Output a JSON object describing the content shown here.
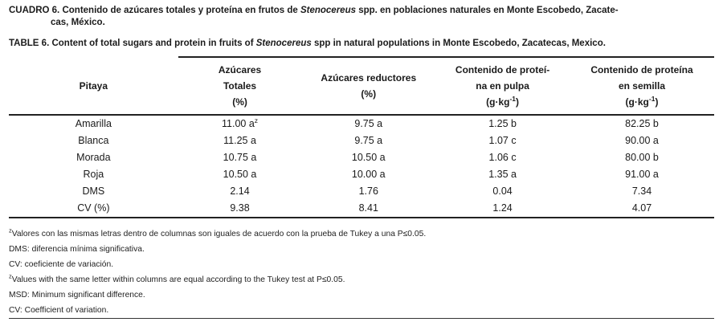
{
  "captions": {
    "es": {
      "label": "CUADRO 6.",
      "text_before_italic": " Contenido de azúcares totales y proteína en frutos de ",
      "italic": "Stenocereus",
      "text_after_italic": " spp. en poblaciones naturales en Monte Escobedo, Zacate-\ncas, México."
    },
    "en": {
      "label": "TABLE 6.",
      "text_before_italic": " Content of total sugars and protein in fruits of ",
      "italic": "Stenocereus",
      "text_after_italic": " spp in natural populations in Monte Escobedo, Zacatecas, Mexico."
    }
  },
  "table": {
    "headers": [
      {
        "name": "Pitaya",
        "unit_prefix": "",
        "unit_sup": "",
        "unit_suffix": ""
      },
      {
        "name": "Azúcares\nTotales",
        "unit_prefix": "(%)",
        "unit_sup": "",
        "unit_suffix": ""
      },
      {
        "name": "Azúcares reductores",
        "unit_prefix": "(%)",
        "unit_sup": "",
        "unit_suffix": ""
      },
      {
        "name": "Contenido de proteí-\nna en pulpa",
        "unit_prefix": "(g·kg",
        "unit_sup": "-1",
        "unit_suffix": ")"
      },
      {
        "name": "Contenido de proteína\nen semilla",
        "unit_prefix": "(g·kg",
        "unit_sup": "-1",
        "unit_suffix": ")"
      }
    ],
    "rows": [
      {
        "cells": [
          "Amarilla",
          "11.00 a",
          "9.75 a",
          "1.25 b",
          "82.25 b"
        ],
        "sup": "z"
      },
      {
        "cells": [
          "Blanca",
          "11.25 a",
          "9.75 a",
          "1.07 c",
          "90.00 a"
        ]
      },
      {
        "cells": [
          "Morada",
          "10.75 a",
          "10.50 a",
          "1.06 c",
          "80.00 b"
        ]
      },
      {
        "cells": [
          "Roja",
          "10.50 a",
          "10.00 a",
          "1.35 a",
          "91.00 a"
        ]
      },
      {
        "cells": [
          "DMS",
          "2.14",
          "1.76",
          "0.04",
          "7.34"
        ]
      },
      {
        "cells": [
          "CV (%)",
          "9.38",
          "8.41",
          "1.24",
          "4.07"
        ]
      }
    ]
  },
  "footnotes": [
    {
      "sup": "z",
      "text": "Valores con las mismas letras dentro de columnas son iguales de acuerdo con la prueba de Tukey a una P≤0.05."
    },
    {
      "sup": "",
      "text": "DMS: diferencia mínima significativa."
    },
    {
      "sup": "",
      "text": "CV: coeficiente de variación."
    },
    {
      "sup": "z",
      "text": "Values with the same letter within columns are equal according to the Tukey test at P≤0.05."
    },
    {
      "sup": "",
      "text": "MSD: Minimum significant difference."
    },
    {
      "sup": "",
      "text": "CV: Coefficient of variation."
    }
  ]
}
